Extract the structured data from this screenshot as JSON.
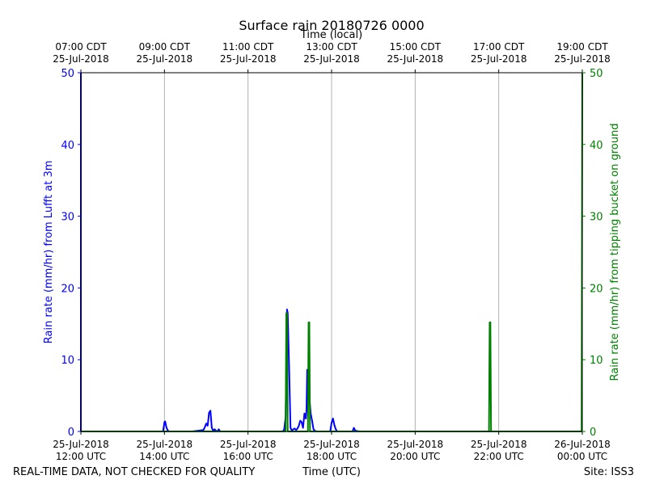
{
  "chart_data": {
    "type": "line",
    "title": "Surface rain 20180726 0000",
    "x_top_label": "Time (local)",
    "xlabel": "Time (UTC)",
    "ylabel_left": "Rain rate (mm/hr) from Lufft at 3m",
    "ylabel_right": "Rain rate (mm/hr) from tipping bucket on ground",
    "footer_left": "REAL-TIME DATA, NOT CHECKED FOR QUALITY",
    "footer_right": "Site: ISS3",
    "xlim": [
      "2018-07-25 12:00",
      "2018-07-26 00:00"
    ],
    "ylim_left": [
      0,
      50
    ],
    "ylim_right": [
      0,
      50
    ],
    "grid_x": true,
    "grid_y": false,
    "colors": {
      "left_series": "#0000ff",
      "right_series": "#008000",
      "grid": "#b0b0b0"
    },
    "bottom_ticks": [
      {
        "x": "2018-07-25 12:00",
        "line1": "25-Jul-2018",
        "line2": "12:00 UTC"
      },
      {
        "x": "2018-07-25 14:00",
        "line1": "25-Jul-2018",
        "line2": "14:00 UTC"
      },
      {
        "x": "2018-07-25 16:00",
        "line1": "25-Jul-2018",
        "line2": "16:00 UTC"
      },
      {
        "x": "2018-07-25 18:00",
        "line1": "25-Jul-2018",
        "line2": "18:00 UTC"
      },
      {
        "x": "2018-07-25 20:00",
        "line1": "25-Jul-2018",
        "line2": "20:00 UTC"
      },
      {
        "x": "2018-07-25 22:00",
        "line1": "25-Jul-2018",
        "line2": "22:00 UTC"
      },
      {
        "x": "2018-07-26 00:00",
        "line1": "26-Jul-2018",
        "line2": "00:00 UTC"
      }
    ],
    "top_ticks": [
      {
        "x": "2018-07-25 12:00",
        "line1": "07:00 CDT",
        "line2": "25-Jul-2018"
      },
      {
        "x": "2018-07-25 14:00",
        "line1": "09:00 CDT",
        "line2": "25-Jul-2018"
      },
      {
        "x": "2018-07-25 16:00",
        "line1": "11:00 CDT",
        "line2": "25-Jul-2018"
      },
      {
        "x": "2018-07-25 18:00",
        "line1": "13:00 CDT",
        "line2": "25-Jul-2018"
      },
      {
        "x": "2018-07-25 20:00",
        "line1": "15:00 CDT",
        "line2": "25-Jul-2018"
      },
      {
        "x": "2018-07-25 22:00",
        "line1": "17:00 CDT",
        "line2": "25-Jul-2018"
      },
      {
        "x": "2018-07-26 00:00",
        "line1": "19:00 CDT",
        "line2": "25-Jul-2018"
      }
    ],
    "y_ticks_left": [
      0,
      10,
      20,
      30,
      40,
      50
    ],
    "y_ticks_right": [
      0,
      10,
      20,
      30,
      40,
      50
    ],
    "series": [
      {
        "axis": "left",
        "x": [
          "2018-07-25 12:00",
          "2018-07-25 12:00",
          "2018-07-25 12:01",
          "2018-07-25 13:58",
          "2018-07-25 14:00",
          "2018-07-25 14:01",
          "2018-07-25 14:03",
          "2018-07-25 14:05",
          "2018-07-25 14:07",
          "2018-07-25 14:40",
          "2018-07-25 14:56",
          "2018-07-25 14:58",
          "2018-07-25 15:00",
          "2018-07-25 15:02",
          "2018-07-25 15:03",
          "2018-07-25 15:04",
          "2018-07-25 15:06",
          "2018-07-25 15:08",
          "2018-07-25 15:10",
          "2018-07-25 15:12",
          "2018-07-25 15:14",
          "2018-07-25 15:16",
          "2018-07-25 15:18",
          "2018-07-25 15:20",
          "2018-07-25 15:40",
          "2018-07-25 16:50",
          "2018-07-25 16:52",
          "2018-07-25 16:54",
          "2018-07-25 16:56",
          "2018-07-25 16:57",
          "2018-07-25 16:59",
          "2018-07-25 17:01",
          "2018-07-25 17:03",
          "2018-07-25 17:05",
          "2018-07-25 17:07",
          "2018-07-25 17:09",
          "2018-07-25 17:11",
          "2018-07-25 17:13",
          "2018-07-25 17:15",
          "2018-07-25 17:17",
          "2018-07-25 17:19",
          "2018-07-25 17:21",
          "2018-07-25 17:23",
          "2018-07-25 17:24",
          "2018-07-25 17:25",
          "2018-07-25 17:27",
          "2018-07-25 17:28",
          "2018-07-25 17:30",
          "2018-07-25 17:32",
          "2018-07-25 17:34",
          "2018-07-25 17:36",
          "2018-07-25 17:38",
          "2018-07-25 17:40",
          "2018-07-25 17:42",
          "2018-07-25 17:58",
          "2018-07-25 18:00",
          "2018-07-25 18:02",
          "2018-07-25 18:04",
          "2018-07-25 18:06",
          "2018-07-25 18:08",
          "2018-07-25 18:15",
          "2018-07-25 18:30",
          "2018-07-25 18:32",
          "2018-07-25 18:34",
          "2018-07-25 18:40",
          "2018-07-25 18:50",
          "2018-07-26 00:00"
        ],
        "values": [
          50,
          0,
          0,
          0,
          1.3,
          1.4,
          0.5,
          0.1,
          0,
          0,
          0.2,
          0.6,
          1.1,
          0.8,
          1.6,
          2.6,
          2.9,
          0.5,
          0.1,
          0.3,
          0.1,
          0,
          0.3,
          0,
          0,
          0,
          0.3,
          2.0,
          17.0,
          16.5,
          9.0,
          0.5,
          0.1,
          0.3,
          0.4,
          0.2,
          0.4,
          0.8,
          1.5,
          1.3,
          0.5,
          2.5,
          1.8,
          3.0,
          8.6,
          6.0,
          4.8,
          2.5,
          1.5,
          0.3,
          0.1,
          0,
          0,
          0,
          0,
          1.2,
          1.8,
          0.9,
          0.3,
          0,
          0,
          0,
          0.5,
          0.1,
          0,
          0,
          0
        ]
      },
      {
        "axis": "right",
        "x": [
          "2018-07-25 12:00",
          "2018-07-25 16:54",
          "2018-07-25 16:55",
          "2018-07-25 16:56",
          "2018-07-25 16:57",
          "2018-07-25 16:58",
          "2018-07-25 17:26",
          "2018-07-25 17:27",
          "2018-07-25 17:28",
          "2018-07-25 17:29",
          "2018-07-25 21:46",
          "2018-07-25 21:47",
          "2018-07-25 21:48",
          "2018-07-25 21:49",
          "2018-07-25 23:59",
          "2018-07-26 00:00"
        ],
        "values": [
          0,
          0,
          16.5,
          16.5,
          0,
          0,
          0,
          15.2,
          15.2,
          0,
          0,
          15.2,
          15.2,
          0,
          0,
          50
        ]
      }
    ]
  }
}
